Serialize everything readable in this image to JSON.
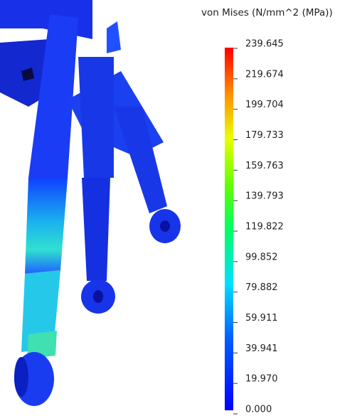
{
  "legend": {
    "title": "von Mises (N/mm^2 (MPa))",
    "ticks": [
      "239.645",
      "219.674",
      "199.704",
      "179.733",
      "159.763",
      "139.793",
      "119.822",
      "99.852",
      "79.882",
      "59.911",
      "39.941",
      "19.970",
      "0.000"
    ]
  }
}
